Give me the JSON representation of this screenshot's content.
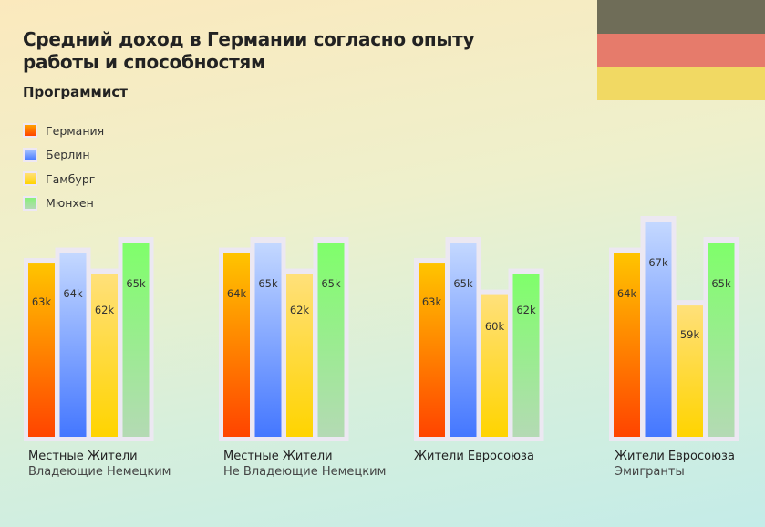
{
  "chart_data": {
    "type": "bar",
    "title": "Средний доход в Германии согласно опыту работы и способностям",
    "subtitle": "Программист",
    "categories": [
      {
        "line1": "Местные Жители",
        "line2": "Владеющие Немецким"
      },
      {
        "line1": "Местные Жители",
        "line2": "Не Владеющие Немецким"
      },
      {
        "line1": "Жители Евросоюза",
        "line2": ""
      },
      {
        "line1": "Жители Евросоюза",
        "line2": "Эмигранты"
      }
    ],
    "series": [
      {
        "name": "Германия",
        "values": [
          63,
          64,
          63,
          64
        ],
        "labels": [
          "63k",
          "64k",
          "63k",
          "64k"
        ],
        "color_top": "#ffc400",
        "color_bottom": "#ff4400"
      },
      {
        "name": "Берлин",
        "values": [
          64,
          65,
          65,
          67
        ],
        "labels": [
          "64k",
          "65k",
          "65k",
          "67k"
        ],
        "color_top": "#c4d8ff",
        "color_bottom": "#4477ff"
      },
      {
        "name": "Гамбург",
        "values": [
          62,
          62,
          60,
          59
        ],
        "labels": [
          "62k",
          "62k",
          "60k",
          "59k"
        ],
        "color_top": "#ffe07a",
        "color_bottom": "#ffd400"
      },
      {
        "name": "Мюнхен",
        "values": [
          65,
          65,
          62,
          65
        ],
        "labels": [
          "65k",
          "65k",
          "62k",
          "65k"
        ],
        "color_top": "#7fff6a",
        "color_bottom": "#b4dab4"
      }
    ],
    "unit": "k",
    "legend_position": "top-left",
    "grid": false
  },
  "flag_colors": [
    "#6f6d58",
    "#e67b6b",
    "#f1d963"
  ]
}
